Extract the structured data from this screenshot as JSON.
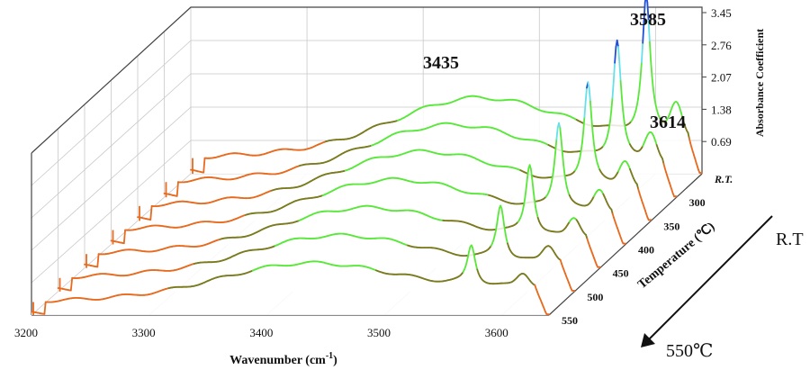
{
  "chart_data": {
    "type": "line",
    "view": "3d-waterfall",
    "xlabel": "Wavenumber (cm",
    "xlabel_sup": "-1",
    "xlabel_close": ")",
    "zlabel": "Absorbance Coefficient",
    "depth_label": "Temperature (℃)",
    "x_ticks": [
      "3200",
      "3300",
      "3400",
      "3500",
      "3600"
    ],
    "z_ticks": [
      "0.69",
      "1.38",
      "2.07",
      "2.76",
      "3.45"
    ],
    "xlim": [
      3200,
      3640
    ],
    "zlim": [
      0,
      3.45
    ],
    "categories": [
      "R.T.",
      "300",
      "350",
      "400",
      "450",
      "500",
      "550"
    ],
    "peak_labels": [
      "3435",
      "3585",
      "3614"
    ],
    "arrow_start_label": "R.T",
    "arrow_end_label": "550℃",
    "colors": {
      "low": "#e86a1e",
      "mid": "#7a7a1e",
      "high": "#59e83a",
      "peak": "#66e0e8",
      "top": "#1f4fd6"
    },
    "series": [
      {
        "name": "R.T.",
        "broad_peak": 1.9,
        "sharp_peak": 3.4,
        "sharp2": 0.7
      },
      {
        "name": "300",
        "broad_peak": 1.85,
        "sharp_peak": 3.05,
        "sharp2": 0.62
      },
      {
        "name": "350",
        "broad_peak": 1.8,
        "sharp_peak": 2.75,
        "sharp2": 0.56
      },
      {
        "name": "400",
        "broad_peak": 1.7,
        "sharp_peak": 2.45,
        "sharp2": 0.5
      },
      {
        "name": "450",
        "broad_peak": 1.6,
        "sharp_peak": 2.1,
        "sharp2": 0.44
      },
      {
        "name": "500",
        "broad_peak": 1.5,
        "sharp_peak": 1.75,
        "sharp2": 0.38
      },
      {
        "name": "550",
        "broad_peak": 1.4,
        "sharp_peak": 1.4,
        "sharp2": 0.32
      }
    ]
  }
}
